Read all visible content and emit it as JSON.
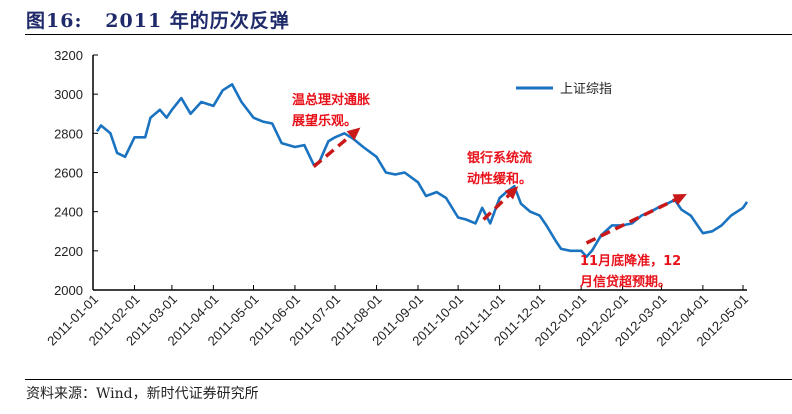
{
  "figure_title": "图16:   2011 年的历次反弹",
  "source": "资料来源：Wind，新时代证券研究所",
  "chart_data": {
    "type": "line",
    "title": "",
    "xlabel": "",
    "ylabel": "",
    "ylim": [
      2000,
      3200
    ],
    "yticks": [
      2000,
      2200,
      2400,
      2600,
      2800,
      3000,
      3200
    ],
    "xticks": [
      "2011-01-01",
      "2011-02-01",
      "2011-03-01",
      "2011-04-01",
      "2011-05-01",
      "2011-06-01",
      "2011-07-01",
      "2011-08-01",
      "2011-09-01",
      "2011-10-01",
      "2011-11-01",
      "2011-12-01",
      "2012-01-01",
      "2012-02-01",
      "2012-03-01",
      "2012-04-01",
      "2012-05-01"
    ],
    "grid": false,
    "legend_position": "top-right",
    "series": [
      {
        "name": "上证综指",
        "color": "#1a73c0",
        "x": [
          "2011-01-04",
          "2011-01-07",
          "2011-01-14",
          "2011-01-19",
          "2011-01-25",
          "2011-02-01",
          "2011-02-09",
          "2011-02-13",
          "2011-02-20",
          "2011-02-25",
          "2011-03-01",
          "2011-03-08",
          "2011-03-15",
          "2011-03-23",
          "2011-04-01",
          "2011-04-08",
          "2011-04-15",
          "2011-04-22",
          "2011-05-01",
          "2011-05-08",
          "2011-05-15",
          "2011-05-22",
          "2011-06-01",
          "2011-06-08",
          "2011-06-15",
          "2011-06-19",
          "2011-06-26",
          "2011-07-01",
          "2011-07-08",
          "2011-07-15",
          "2011-07-22",
          "2011-08-01",
          "2011-08-08",
          "2011-08-15",
          "2011-08-22",
          "2011-09-01",
          "2011-09-07",
          "2011-09-15",
          "2011-09-22",
          "2011-10-01",
          "2011-10-07",
          "2011-10-14",
          "2011-10-19",
          "2011-10-25",
          "2011-11-01",
          "2011-11-06",
          "2011-11-12",
          "2011-11-17",
          "2011-11-24",
          "2011-12-01",
          "2011-12-06",
          "2011-12-13",
          "2011-12-17",
          "2011-12-24",
          "2012-01-01",
          "2012-01-05",
          "2012-01-09",
          "2012-01-16",
          "2012-01-24",
          "2012-02-01",
          "2012-02-08",
          "2012-02-15",
          "2012-02-22",
          "2012-03-01",
          "2012-03-05",
          "2012-03-11",
          "2012-03-16",
          "2012-03-23",
          "2012-04-01",
          "2012-04-08",
          "2012-04-15",
          "2012-04-22",
          "2012-05-01",
          "2012-05-04"
        ],
        "values": [
          2810,
          2840,
          2800,
          2700,
          2680,
          2780,
          2780,
          2880,
          2920,
          2880,
          2920,
          2980,
          2900,
          2960,
          2940,
          3020,
          3050,
          2960,
          2880,
          2860,
          2850,
          2750,
          2730,
          2740,
          2640,
          2650,
          2760,
          2780,
          2800,
          2770,
          2730,
          2680,
          2600,
          2590,
          2600,
          2550,
          2480,
          2500,
          2470,
          2370,
          2360,
          2340,
          2420,
          2340,
          2470,
          2500,
          2530,
          2440,
          2400,
          2380,
          2330,
          2250,
          2210,
          2200,
          2200,
          2170,
          2200,
          2280,
          2330,
          2330,
          2340,
          2380,
          2400,
          2430,
          2440,
          2460,
          2410,
          2380,
          2290,
          2300,
          2330,
          2380,
          2420,
          2450
        ]
      }
    ],
    "annotations": [
      {
        "text": [
          "温总理对通胀",
          "展望乐观。"
        ],
        "arrow_from": [
          "2011-06-15",
          2630
        ],
        "arrow_to": [
          "2011-07-20",
          2830
        ]
      },
      {
        "text": [
          "银行系统流",
          "动性缓和。"
        ],
        "arrow_from": [
          "2011-10-20",
          2360
        ],
        "arrow_to": [
          "2011-11-15",
          2530
        ]
      },
      {
        "text": [
          "11月底降准，12",
          "月信贷超预期。"
        ],
        "arrow_from": [
          "2012-01-05",
          2240
        ],
        "arrow_to": [
          "2012-03-20",
          2490
        ]
      }
    ],
    "arrow_color": "#c81818"
  }
}
